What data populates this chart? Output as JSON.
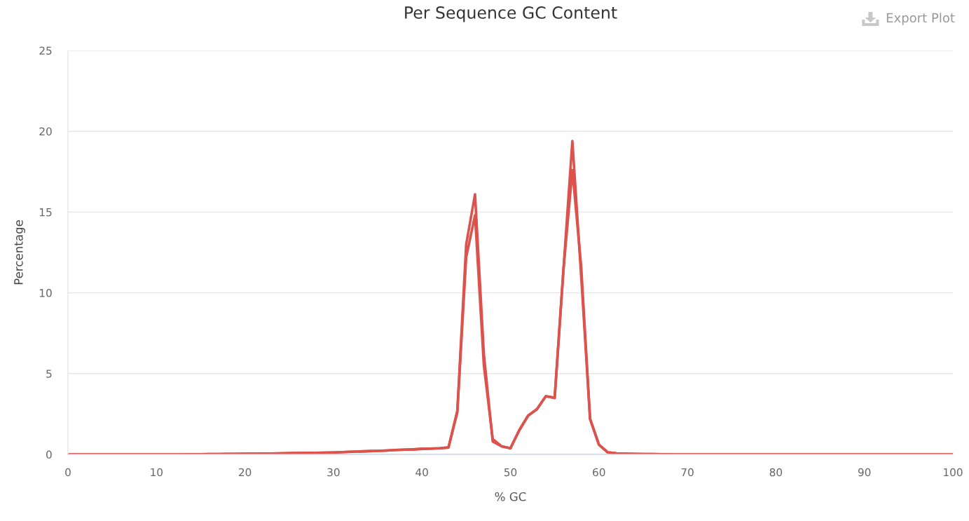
{
  "chart_data": {
    "type": "line",
    "title": "Per Sequence GC Content",
    "xlabel": "% GC",
    "ylabel": "Percentage",
    "annotations": [
      "Export Plot"
    ],
    "x": [
      0,
      1,
      2,
      3,
      4,
      5,
      6,
      7,
      8,
      9,
      10,
      11,
      12,
      13,
      14,
      15,
      16,
      17,
      18,
      19,
      20,
      21,
      22,
      23,
      24,
      25,
      26,
      27,
      28,
      29,
      30,
      31,
      32,
      33,
      34,
      35,
      36,
      37,
      38,
      39,
      40,
      41,
      42,
      43,
      44,
      45,
      46,
      47,
      48,
      49,
      50,
      51,
      52,
      53,
      54,
      55,
      56,
      57,
      58,
      59,
      60,
      61,
      62,
      63,
      64,
      65,
      66,
      67,
      68,
      69,
      70,
      71,
      72,
      73,
      74,
      75,
      76,
      77,
      78,
      79,
      80,
      81,
      82,
      83,
      84,
      85,
      86,
      87,
      88,
      89,
      90,
      91,
      92,
      93,
      94,
      95,
      96,
      97,
      98,
      99,
      100
    ],
    "series": [
      {
        "color": "#dc524c",
        "values": [
          0,
          0,
          0,
          0,
          0,
          0,
          0,
          0,
          0,
          0,
          0,
          0,
          0,
          0,
          0.01,
          0.01,
          0.02,
          0.02,
          0.03,
          0.03,
          0.04,
          0.04,
          0.05,
          0.05,
          0.06,
          0.07,
          0.08,
          0.09,
          0.1,
          0.11,
          0.12,
          0.14,
          0.16,
          0.18,
          0.2,
          0.22,
          0.24,
          0.27,
          0.29,
          0.31,
          0.34,
          0.36,
          0.38,
          0.43,
          2.7,
          13.0,
          16.1,
          6.2,
          0.8,
          0.5,
          0.38,
          1.5,
          2.4,
          2.8,
          3.6,
          3.5,
          11.5,
          19.4,
          11.0,
          2.2,
          0.6,
          0.13,
          0.06,
          0.04,
          0.03,
          0.02,
          0.02,
          0.01,
          0,
          0,
          0,
          0,
          0,
          0,
          0,
          0,
          0,
          0,
          0,
          0,
          0,
          0,
          0,
          0,
          0,
          0,
          0,
          0,
          0,
          0,
          0,
          0,
          0,
          0,
          0,
          0,
          0,
          0,
          0,
          0,
          0
        ]
      },
      {
        "color": "#dc524c",
        "values": [
          0,
          0,
          0,
          0,
          0,
          0,
          0,
          0,
          0,
          0,
          0,
          0,
          0,
          0,
          0.01,
          0.01,
          0.02,
          0.02,
          0.03,
          0.03,
          0.04,
          0.04,
          0.05,
          0.05,
          0.06,
          0.07,
          0.08,
          0.09,
          0.1,
          0.11,
          0.12,
          0.14,
          0.16,
          0.18,
          0.2,
          0.22,
          0.24,
          0.27,
          0.29,
          0.31,
          0.34,
          0.36,
          0.38,
          0.43,
          2.6,
          12.2,
          14.8,
          5.5,
          0.95,
          0.5,
          0.38,
          1.5,
          2.4,
          2.8,
          3.6,
          3.5,
          11.5,
          17.6,
          11.6,
          2.2,
          0.6,
          0.13,
          0.06,
          0.04,
          0.03,
          0.02,
          0.02,
          0.01,
          0,
          0,
          0,
          0,
          0,
          0,
          0,
          0,
          0,
          0,
          0,
          0,
          0,
          0,
          0,
          0,
          0,
          0,
          0,
          0,
          0,
          0,
          0,
          0,
          0,
          0,
          0,
          0,
          0,
          0,
          0,
          0,
          0
        ]
      }
    ],
    "xlim": [
      0,
      100
    ],
    "ylim": [
      0,
      25
    ],
    "xticks": [
      0,
      10,
      20,
      30,
      40,
      50,
      60,
      70,
      80,
      90,
      100
    ],
    "yticks": [
      0,
      5,
      10,
      15,
      20,
      25
    ],
    "grid": "y"
  }
}
